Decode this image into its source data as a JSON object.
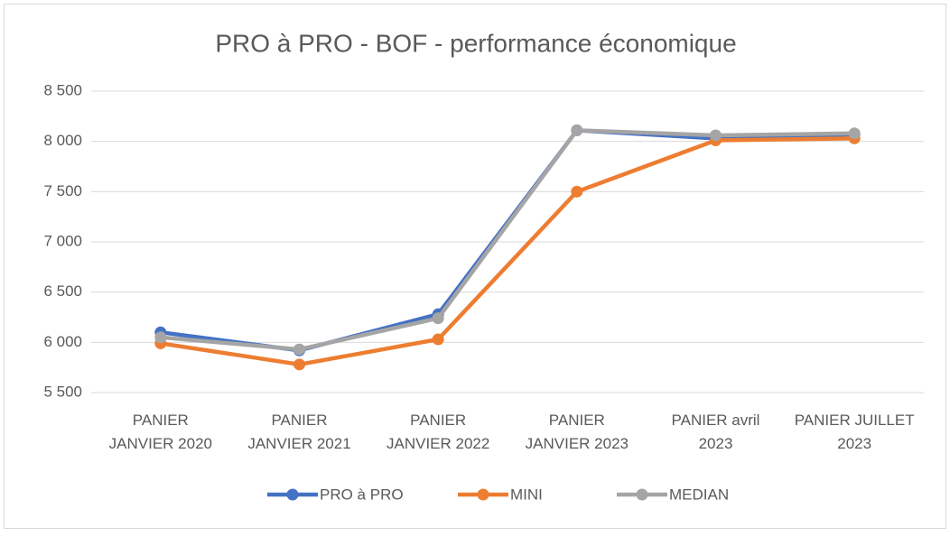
{
  "chart_data": {
    "type": "line",
    "title": "PRO à PRO - BOF - performance économique",
    "categories": [
      "PANIER\nJANVIER 2020",
      "PANIER\nJANVIER 2021",
      "PANIER\nJANVIER 2022",
      "PANIER\nJANVIER 2023",
      "PANIER avril\n2023",
      "PANIER JUILLET\n2023"
    ],
    "series": [
      {
        "name": "PRO à PRO",
        "color": "#4472c4",
        "values": [
          6100,
          5920,
          6280,
          8110,
          8030,
          8070
        ]
      },
      {
        "name": "MINI",
        "color": "#ed7d31",
        "values": [
          5990,
          5780,
          6030,
          7500,
          8010,
          8030
        ]
      },
      {
        "name": "MEDIAN",
        "color": "#a5a5a5",
        "values": [
          6050,
          5930,
          6240,
          8110,
          8060,
          8080
        ]
      }
    ],
    "ylim": [
      5500,
      8500
    ],
    "yticks": [
      {
        "value": 5500,
        "label": "5 500"
      },
      {
        "value": 6000,
        "label": "6 000"
      },
      {
        "value": 6500,
        "label": "6 500"
      },
      {
        "value": 7000,
        "label": "7 000"
      },
      {
        "value": 7500,
        "label": "7 500"
      },
      {
        "value": 8000,
        "label": "8 000"
      },
      {
        "value": 8500,
        "label": "8 500"
      }
    ],
    "grid": true,
    "legend": "bottom"
  }
}
